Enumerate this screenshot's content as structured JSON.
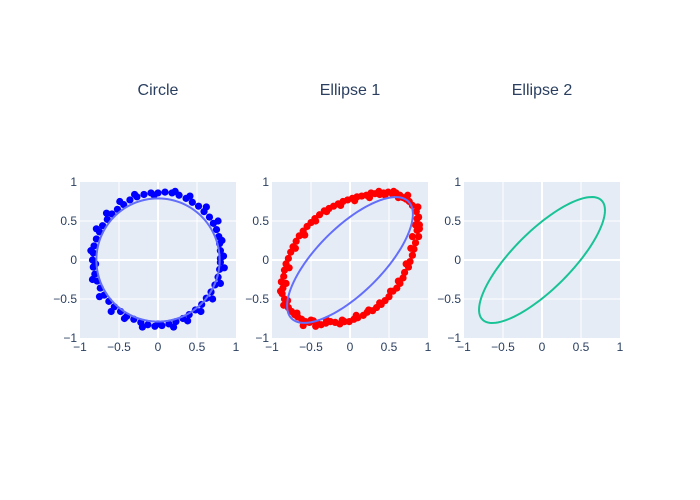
{
  "chart_data": [
    {
      "type": "scatter",
      "title": "Circle",
      "xlim": [
        -1,
        1
      ],
      "ylim": [
        -1,
        1
      ],
      "x_ticks": [
        -1,
        -0.5,
        0,
        0.5,
        1
      ],
      "y_ticks": [
        -1,
        -0.5,
        0,
        0.5,
        1
      ],
      "x_tick_labels": [
        "−1",
        "−0.5",
        "0",
        "0.5",
        "1"
      ],
      "y_tick_labels": [
        "−1",
        "−0.5",
        "0",
        "0.5",
        "1"
      ],
      "grid": true,
      "background": "#e5ecf6",
      "series": [
        {
          "mode": "markers",
          "color": "#0000ff",
          "points": [
            [
              0.8,
              0.02
            ],
            [
              0.8,
              0.12
            ],
            [
              0.79,
              0.21
            ],
            [
              0.78,
              0.3
            ],
            [
              0.75,
              0.39
            ],
            [
              0.71,
              0.47
            ],
            [
              0.66,
              0.55
            ],
            [
              0.59,
              0.62
            ],
            [
              0.52,
              0.69
            ],
            [
              0.44,
              0.74
            ],
            [
              0.36,
              0.79
            ],
            [
              0.27,
              0.83
            ],
            [
              0.18,
              0.86
            ],
            [
              0.09,
              0.87
            ],
            [
              0.0,
              0.86
            ],
            [
              -0.09,
              0.86
            ],
            [
              -0.18,
              0.84
            ],
            [
              -0.27,
              0.81
            ],
            [
              -0.36,
              0.77
            ],
            [
              -0.44,
              0.71
            ],
            [
              -0.52,
              0.65
            ],
            [
              -0.59,
              0.59
            ],
            [
              -0.65,
              0.52
            ],
            [
              -0.71,
              0.44
            ],
            [
              -0.75,
              0.36
            ],
            [
              -0.79,
              0.27
            ],
            [
              -0.82,
              0.18
            ],
            [
              -0.83,
              0.09
            ],
            [
              -0.84,
              0.0
            ],
            [
              -0.83,
              -0.09
            ],
            [
              -0.81,
              -0.18
            ],
            [
              -0.78,
              -0.27
            ],
            [
              -0.74,
              -0.36
            ],
            [
              -0.69,
              -0.45
            ],
            [
              -0.63,
              -0.53
            ],
            [
              -0.56,
              -0.6
            ],
            [
              -0.48,
              -0.66
            ],
            [
              -0.4,
              -0.72
            ],
            [
              -0.31,
              -0.76
            ],
            [
              -0.22,
              -0.8
            ],
            [
              -0.13,
              -0.83
            ],
            [
              -0.04,
              -0.85
            ],
            [
              0.05,
              -0.84
            ],
            [
              0.14,
              -0.82
            ],
            [
              0.23,
              -0.79
            ],
            [
              0.32,
              -0.75
            ],
            [
              0.4,
              -0.7
            ],
            [
              0.48,
              -0.64
            ],
            [
              0.56,
              -0.57
            ],
            [
              0.62,
              -0.49
            ],
            [
              0.68,
              -0.41
            ],
            [
              0.73,
              -0.32
            ],
            [
              0.77,
              -0.22
            ],
            [
              0.79,
              -0.12
            ],
            [
              0.8,
              -0.03
            ],
            [
              0.84,
              0.05
            ],
            [
              0.82,
              0.25
            ],
            [
              0.77,
              0.5
            ],
            [
              0.62,
              0.68
            ],
            [
              0.41,
              0.82
            ],
            [
              0.22,
              0.88
            ],
            [
              -0.05,
              0.83
            ],
            [
              -0.3,
              0.84
            ],
            [
              -0.49,
              0.75
            ],
            [
              -0.66,
              0.6
            ],
            [
              -0.79,
              0.4
            ],
            [
              -0.86,
              0.12
            ],
            [
              -0.8,
              -0.05
            ],
            [
              -0.84,
              -0.25
            ],
            [
              -0.75,
              -0.47
            ],
            [
              -0.6,
              -0.66
            ],
            [
              -0.43,
              -0.75
            ],
            [
              -0.2,
              -0.86
            ],
            [
              0.0,
              -0.82
            ],
            [
              0.2,
              -0.86
            ],
            [
              0.38,
              -0.78
            ],
            [
              0.55,
              -0.66
            ],
            [
              0.7,
              -0.5
            ],
            [
              0.8,
              -0.3
            ],
            [
              0.85,
              -0.1
            ]
          ]
        },
        {
          "mode": "lines",
          "color": "#636efa",
          "shape": "circle",
          "center": [
            0,
            0
          ],
          "radii": [
            0.79,
            0.79
          ],
          "rotation_deg": 0
        }
      ]
    },
    {
      "type": "scatter",
      "title": "Ellipse 1",
      "xlim": [
        -1,
        1
      ],
      "ylim": [
        -1,
        1
      ],
      "x_ticks": [
        -1,
        -0.5,
        0,
        0.5,
        1
      ],
      "y_ticks": [
        -1,
        -0.5,
        0,
        0.5,
        1
      ],
      "x_tick_labels": [
        "−1",
        "−0.5",
        "0",
        "0.5",
        "1"
      ],
      "y_tick_labels": [
        "−1",
        "−0.5",
        "0",
        "0.5",
        "1"
      ],
      "grid": true,
      "background": "#e5ecf6",
      "series": [
        {
          "mode": "markers",
          "color": "#ff0000",
          "points": [
            [
              0.86,
              0.53
            ],
            [
              0.86,
              0.38
            ],
            [
              0.84,
              0.22
            ],
            [
              0.8,
              0.06
            ],
            [
              0.75,
              -0.09
            ],
            [
              0.68,
              -0.23
            ],
            [
              0.6,
              -0.36
            ],
            [
              0.5,
              -0.47
            ],
            [
              0.4,
              -0.57
            ],
            [
              0.29,
              -0.65
            ],
            [
              0.17,
              -0.71
            ],
            [
              0.05,
              -0.76
            ],
            [
              -0.07,
              -0.79
            ],
            [
              -0.19,
              -0.8
            ],
            [
              -0.31,
              -0.81
            ],
            [
              -0.42,
              -0.81
            ],
            [
              -0.52,
              -0.8
            ],
            [
              -0.62,
              -0.76
            ],
            [
              -0.71,
              -0.7
            ],
            [
              -0.79,
              -0.61
            ],
            [
              -0.84,
              -0.5
            ],
            [
              -0.86,
              -0.36
            ],
            [
              -0.85,
              -0.21
            ],
            [
              -0.82,
              -0.05
            ],
            [
              -0.76,
              0.1
            ],
            [
              -0.69,
              0.24
            ],
            [
              -0.6,
              0.37
            ],
            [
              -0.5,
              0.48
            ],
            [
              -0.39,
              0.58
            ],
            [
              -0.27,
              0.66
            ],
            [
              -0.15,
              0.72
            ],
            [
              -0.03,
              0.77
            ],
            [
              0.09,
              0.81
            ],
            [
              0.21,
              0.83
            ],
            [
              0.32,
              0.85
            ],
            [
              0.43,
              0.86
            ],
            [
              0.54,
              0.85
            ],
            [
              0.64,
              0.83
            ],
            [
              0.72,
              0.78
            ],
            [
              0.8,
              0.7
            ],
            [
              0.85,
              0.62
            ],
            [
              0.89,
              0.45
            ],
            [
              0.88,
              0.3
            ],
            [
              0.82,
              0.14
            ],
            [
              0.77,
              -0.02
            ],
            [
              0.7,
              -0.16
            ],
            [
              0.64,
              -0.3
            ],
            [
              0.55,
              -0.4
            ],
            [
              0.45,
              -0.52
            ],
            [
              0.34,
              -0.61
            ],
            [
              0.22,
              -0.67
            ],
            [
              0.1,
              -0.74
            ],
            [
              -0.01,
              -0.79
            ],
            [
              -0.13,
              -0.82
            ],
            [
              -0.25,
              -0.79
            ],
            [
              -0.37,
              -0.83
            ],
            [
              -0.47,
              -0.78
            ],
            [
              -0.57,
              -0.79
            ],
            [
              -0.67,
              -0.73
            ],
            [
              -0.75,
              -0.66
            ],
            [
              -0.82,
              -0.55
            ],
            [
              -0.87,
              -0.43
            ],
            [
              -0.88,
              -0.28
            ],
            [
              -0.84,
              -0.13
            ],
            [
              -0.79,
              0.02
            ],
            [
              -0.73,
              0.17
            ],
            [
              -0.65,
              0.31
            ],
            [
              -0.55,
              0.43
            ],
            [
              -0.45,
              0.53
            ],
            [
              -0.33,
              0.63
            ],
            [
              -0.21,
              0.69
            ],
            [
              -0.09,
              0.75
            ],
            [
              0.03,
              0.79
            ],
            [
              0.15,
              0.82
            ],
            [
              0.27,
              0.86
            ],
            [
              0.38,
              0.84
            ],
            [
              0.49,
              0.87
            ],
            [
              0.59,
              0.86
            ],
            [
              0.68,
              0.8
            ],
            [
              0.76,
              0.75
            ],
            [
              0.84,
              0.45
            ],
            [
              0.8,
              0.3
            ],
            [
              0.78,
              0.15
            ],
            [
              0.72,
              -0.05
            ],
            [
              0.62,
              -0.27
            ],
            [
              0.52,
              -0.4
            ],
            [
              0.38,
              -0.55
            ],
            [
              0.24,
              -0.64
            ],
            [
              0.08,
              -0.71
            ],
            [
              -0.1,
              -0.77
            ],
            [
              -0.3,
              -0.77
            ],
            [
              -0.5,
              -0.77
            ],
            [
              -0.68,
              -0.68
            ],
            [
              -0.8,
              -0.52
            ],
            [
              -0.82,
              -0.3
            ],
            [
              -0.78,
              -0.1
            ],
            [
              -0.7,
              0.15
            ],
            [
              -0.58,
              0.32
            ],
            [
              -0.44,
              0.5
            ],
            [
              -0.3,
              0.62
            ],
            [
              -0.12,
              0.7
            ],
            [
              0.06,
              0.76
            ],
            [
              0.25,
              0.8
            ],
            [
              0.45,
              0.83
            ],
            [
              0.62,
              0.8
            ],
            [
              0.88,
              0.55
            ],
            [
              0.89,
              0.4
            ],
            [
              0.87,
              0.68
            ],
            [
              0.74,
              0.83
            ],
            [
              0.56,
              0.88
            ],
            [
              0.37,
              0.88
            ],
            [
              -0.6,
              -0.84
            ],
            [
              -0.89,
              -0.4
            ],
            [
              -0.85,
              -0.58
            ],
            [
              -0.44,
              -0.85
            ]
          ]
        },
        {
          "mode": "lines",
          "color": "#636efa",
          "shape": "ellipse",
          "center": [
            0,
            0
          ],
          "radii": [
            1.06,
            0.42
          ],
          "rotation_deg": 45
        }
      ]
    },
    {
      "type": "line",
      "title": "Ellipse 2",
      "xlim": [
        -1,
        1
      ],
      "ylim": [
        -1,
        1
      ],
      "x_ticks": [
        -1,
        -0.5,
        0,
        0.5,
        1
      ],
      "y_ticks": [
        -1,
        -0.5,
        0,
        0.5,
        1
      ],
      "x_tick_labels": [
        "−1",
        "−0.5",
        "0",
        "0.5",
        "1"
      ],
      "y_tick_labels": [
        "−1",
        "−0.5",
        "0",
        "0.5",
        "1"
      ],
      "grid": true,
      "background": "#e5ecf6",
      "series": [
        {
          "mode": "lines",
          "color": "#19c396",
          "shape": "ellipse",
          "center": [
            0,
            0
          ],
          "radii": [
            1.08,
            0.37
          ],
          "rotation_deg": 45
        }
      ]
    }
  ]
}
